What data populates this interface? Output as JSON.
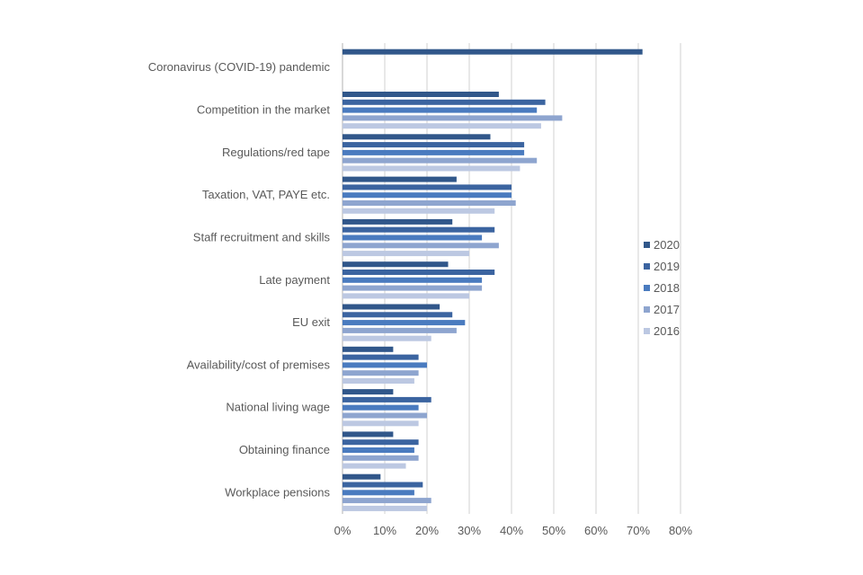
{
  "chart_data": {
    "type": "bar",
    "orientation": "horizontal",
    "title": "",
    "xlabel": "",
    "ylabel": "",
    "xlim": [
      0,
      80
    ],
    "x_ticks": [
      "0%",
      "10%",
      "20%",
      "30%",
      "40%",
      "50%",
      "60%",
      "70%",
      "80%"
    ],
    "grid": true,
    "legend_position": "right",
    "categories": [
      "Coronavirus (COVID-19) pandemic",
      "Competition in the market",
      "Regulations/red tape",
      "Taxation, VAT, PAYE etc.",
      "Staff recruitment and skills",
      "Late payment",
      "EU exit",
      "Availability/cost of premises",
      "National living wage",
      "Obtaining finance",
      "Workplace pensions"
    ],
    "series": [
      {
        "name": "2020",
        "color": "#31578a",
        "values": [
          71,
          37,
          35,
          27,
          26,
          25,
          23,
          12,
          12,
          12,
          9
        ]
      },
      {
        "name": "2019",
        "color": "#3b64a0",
        "values": [
          null,
          48,
          43,
          40,
          36,
          36,
          26,
          18,
          21,
          18,
          19
        ]
      },
      {
        "name": "2018",
        "color": "#4a7bbf",
        "values": [
          null,
          46,
          43,
          40,
          33,
          33,
          29,
          20,
          18,
          17,
          17
        ]
      },
      {
        "name": "2017",
        "color": "#8ea5cf",
        "values": [
          null,
          52,
          46,
          41,
          37,
          33,
          27,
          18,
          20,
          18,
          21
        ]
      },
      {
        "name": "2016",
        "color": "#bcc8e2",
        "values": [
          null,
          47,
          42,
          36,
          30,
          30,
          21,
          17,
          18,
          15,
          20
        ]
      }
    ]
  }
}
